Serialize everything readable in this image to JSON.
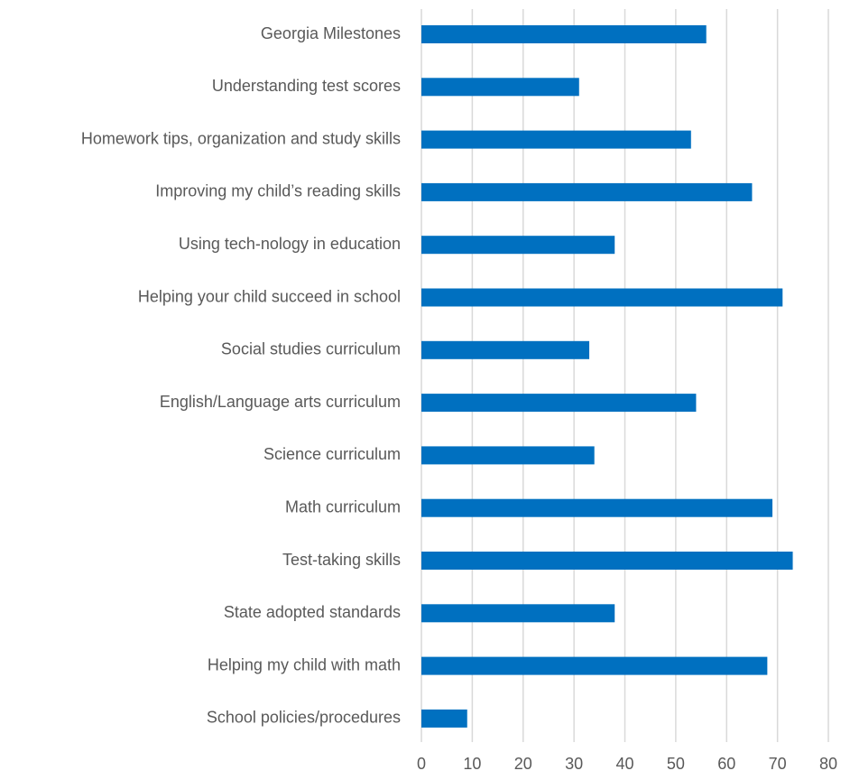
{
  "chart_data": {
    "type": "bar",
    "orientation": "horizontal",
    "title": "",
    "xlabel": "",
    "ylabel": "",
    "categories": [
      "Georgia Milestones",
      "Understanding test scores",
      "Homework tips, organization and study skills",
      "Improving my child’s reading skills",
      "Using tech-nology in education",
      "Helping your child succeed in school",
      "Social studies curriculum",
      "English/Language arts curriculum",
      "Science curriculum",
      "Math curriculum",
      "Test-taking skills",
      "State adopted standards",
      "Helping my child with math",
      "School policies/procedures"
    ],
    "values": [
      56,
      31,
      53,
      65,
      38,
      71,
      33,
      54,
      34,
      69,
      73,
      38,
      68,
      9
    ],
    "xlim": [
      0,
      80
    ],
    "ticks": [
      "0",
      "10",
      "20",
      "30",
      "40",
      "50",
      "60",
      "70",
      "80"
    ],
    "grid": true,
    "legend": "none",
    "bar_color": "#0070c0",
    "grid_color": "#d9d9d9",
    "text_color": "#595959"
  }
}
